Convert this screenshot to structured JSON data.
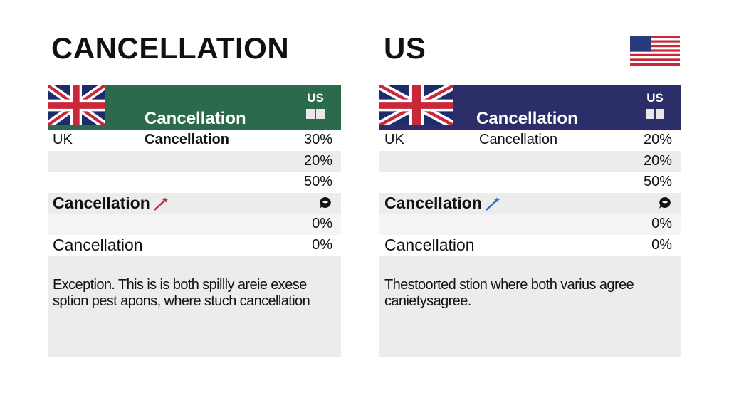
{
  "titles": {
    "left": "CANCELLATION",
    "right": "US"
  },
  "colors": {
    "left_header": "#2b6a4b",
    "right_header": "#2b2e68",
    "left_wand": "#c0283a",
    "right_wand": "#2f6fc0"
  },
  "panels": [
    {
      "header_title": "Cancellation",
      "header_us": "US",
      "rows": [
        {
          "label": "UK",
          "middle": "Cancellation",
          "value": "30%"
        },
        {
          "value": "20%"
        },
        {
          "value": "50%"
        },
        {
          "label": "Cancellation"
        },
        {
          "value": "0%"
        },
        {
          "label": "Cancellation",
          "value": "0%"
        }
      ],
      "note": "Exception. This is is both spillly areie exese sption pest apons, where stuch cancellation"
    },
    {
      "header_title": "Cancellation",
      "header_us": "US",
      "rows": [
        {
          "label": "UK",
          "middle": "Cancellation",
          "value": "20%"
        },
        {
          "value": "20%"
        },
        {
          "value": "50%"
        },
        {
          "label": "Cancellation"
        },
        {
          "value": "0%"
        },
        {
          "label": "Cancellation",
          "value": "0%"
        }
      ],
      "note": "Thestoorted stion where both varius agree canietysagree."
    }
  ]
}
